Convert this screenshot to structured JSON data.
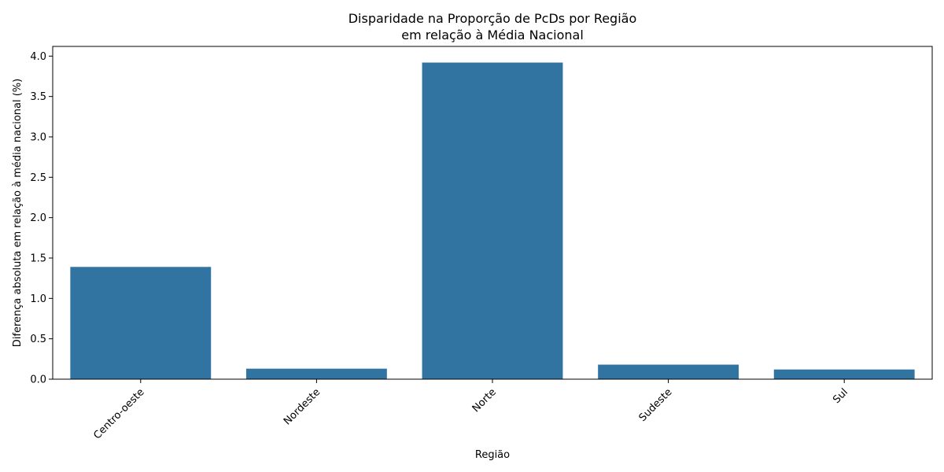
{
  "chart_data": {
    "type": "bar",
    "title": [
      "Disparidade na Proporção de PcDs por Região",
      "em relação à Média Nacional"
    ],
    "xlabel": "Região",
    "ylabel": "Diferença absoluta em relação à média nacional (%)",
    "categories": [
      "Centro-oeste",
      "Nordeste",
      "Norte",
      "Sudeste",
      "Sul"
    ],
    "values": [
      1.39,
      0.13,
      3.92,
      0.18,
      0.12
    ],
    "ylim": [
      0,
      4.12
    ],
    "yticks": [
      0.0,
      0.5,
      1.0,
      1.5,
      2.0,
      2.5,
      3.0,
      3.5,
      4.0
    ],
    "ytick_labels": [
      "0.0",
      "0.5",
      "1.0",
      "1.5",
      "2.0",
      "2.5",
      "3.0",
      "3.5",
      "4.0"
    ],
    "bar_color": "#3274a1",
    "grid": false,
    "xtick_rotation_deg": 45
  }
}
